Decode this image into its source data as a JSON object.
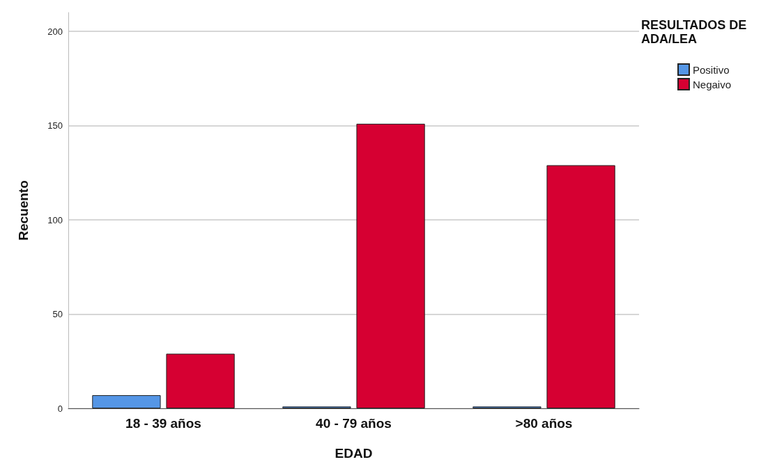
{
  "chart_data": {
    "type": "bar",
    "xlabel": "EDAD",
    "ylabel": "Recuento",
    "legend_title": "RESULTADOS DE ADA/LEA",
    "categories": [
      "18 - 39 años",
      "40 - 79 años",
      ">80 años"
    ],
    "series": [
      {
        "name": "Positivo",
        "color": "#5596e6",
        "values": [
          7,
          1,
          1
        ]
      },
      {
        "name": "Negaivo",
        "color": "#d60032",
        "values": [
          29,
          151,
          129
        ]
      }
    ],
    "ylim": [
      0,
      210
    ],
    "yticks": [
      0,
      50,
      100,
      150,
      200
    ],
    "grid": "y",
    "legend": "top right"
  }
}
